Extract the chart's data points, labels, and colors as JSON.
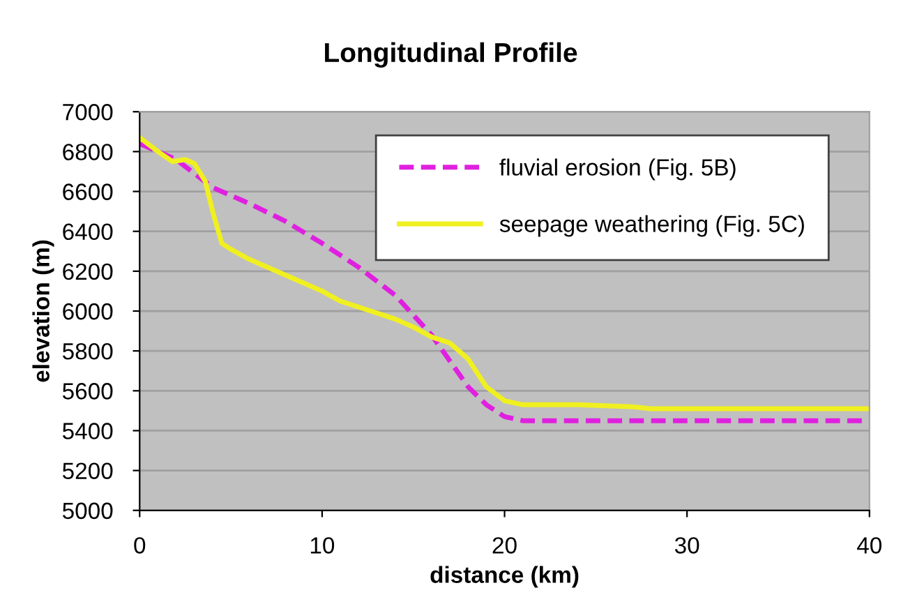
{
  "chart_data": {
    "type": "line",
    "title": "Longitudinal Profile",
    "xlabel": "distance (km)",
    "ylabel": "elevation (m)",
    "xlim": [
      0,
      40
    ],
    "xticks": [
      0,
      10,
      20,
      30,
      40
    ],
    "ylim": [
      5000,
      7000
    ],
    "yticks": [
      5000,
      5200,
      5400,
      5600,
      5800,
      6000,
      6200,
      6400,
      6600,
      6800,
      7000
    ],
    "grid": "y",
    "legend": "top right",
    "series": [
      {
        "name": "fluvial erosion (Fig. 5B)",
        "color": "#e020e0",
        "line_style": "dashed",
        "x": [
          0,
          2,
          4,
          6,
          8,
          10,
          12,
          14,
          16,
          18,
          19,
          20,
          21,
          25,
          40
        ],
        "values": [
          6840,
          6760,
          6620,
          6540,
          6450,
          6340,
          6220,
          6080,
          5880,
          5620,
          5530,
          5470,
          5450,
          5450,
          5450
        ]
      },
      {
        "name": "seepage weathering (Fig. 5C)",
        "color": "#f0f020",
        "line_style": "solid",
        "x": [
          0,
          1,
          1.8,
          2.5,
          3,
          3.6,
          4,
          4.5,
          5,
          6,
          8,
          10,
          11,
          12,
          14,
          15,
          16,
          17,
          18,
          19,
          20,
          21,
          24,
          27,
          28,
          40
        ],
        "values": [
          6870,
          6800,
          6750,
          6760,
          6740,
          6650,
          6500,
          6340,
          6310,
          6260,
          6180,
          6100,
          6050,
          6020,
          5960,
          5920,
          5870,
          5840,
          5760,
          5620,
          5550,
          5530,
          5530,
          5520,
          5510,
          5510
        ]
      }
    ]
  }
}
